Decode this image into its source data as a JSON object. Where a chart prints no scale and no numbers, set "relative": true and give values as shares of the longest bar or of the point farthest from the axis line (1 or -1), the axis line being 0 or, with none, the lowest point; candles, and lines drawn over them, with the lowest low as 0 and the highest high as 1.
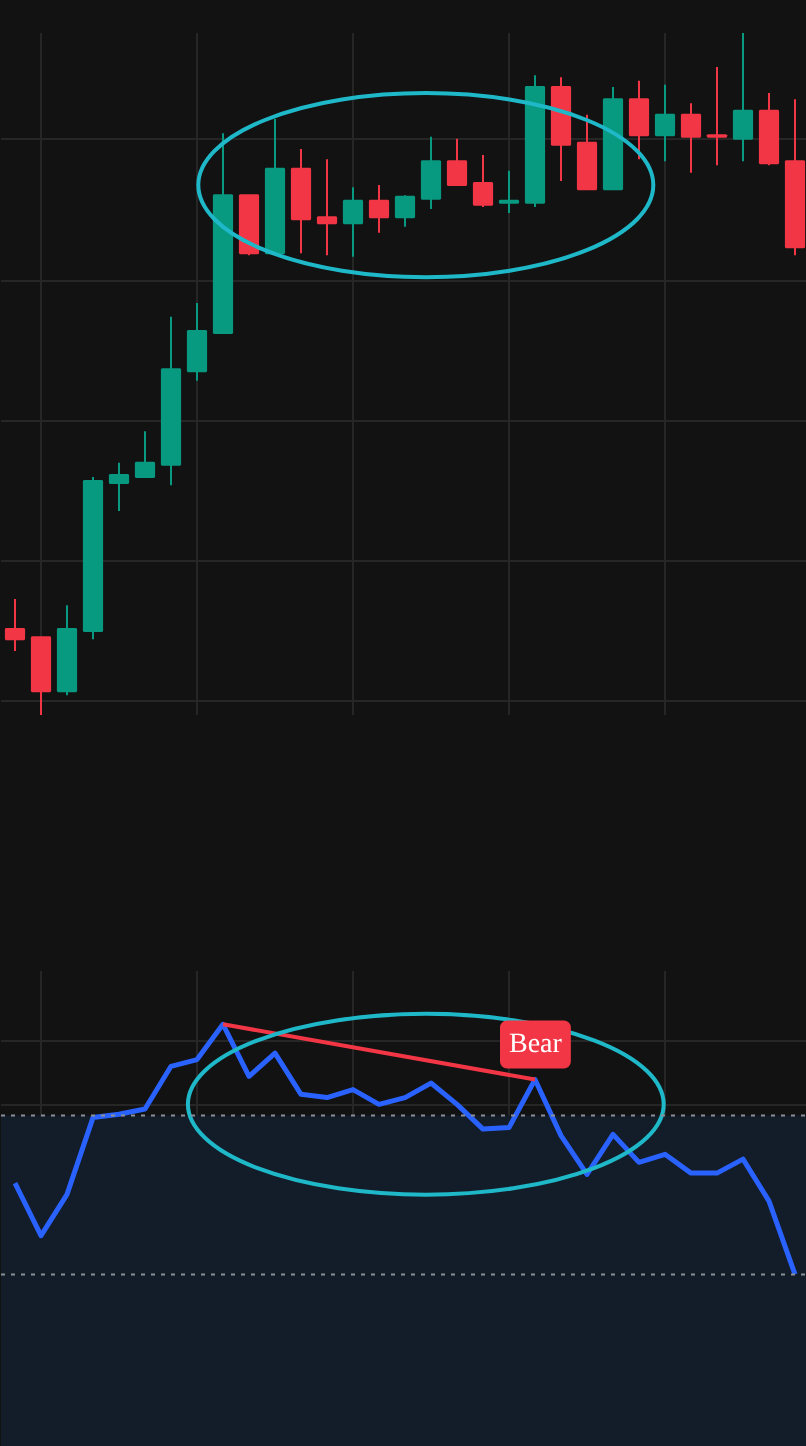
{
  "chart_data": [
    {
      "type": "candlestick",
      "relative": true,
      "grid": true,
      "tick_labels": false,
      "categories": [
        null,
        null,
        null,
        null,
        null,
        null,
        null,
        null,
        null,
        null,
        null,
        null,
        null,
        null,
        null,
        null,
        null,
        null,
        null,
        null,
        null,
        null,
        null,
        null,
        null,
        null,
        null,
        null,
        null,
        null,
        null
      ],
      "colors": [
        "#f23645",
        "#f23645",
        "#089981",
        "#089981",
        "#089981",
        "#089981",
        "#089981",
        "#089981",
        "#089981",
        "#f23645",
        "#089981",
        "#f23645",
        "#f23645",
        "#089981",
        "#f23645",
        "#089981",
        "#089981",
        "#f23645",
        "#f23645",
        "#089981",
        "#089981",
        "#f23645",
        "#f23645",
        "#089981",
        "#f23645",
        "#089981",
        "#f23645",
        "#f23645",
        "#089981",
        "#f23645",
        "#f23645"
      ],
      "ohlc": [
        [
          0.126,
          0.17,
          0.094,
          0.111
        ],
        [
          0.114,
          0.114,
          0,
          0.035
        ],
        [
          0.035,
          0.161,
          0.029,
          0.126
        ],
        [
          0.123,
          0.349,
          0.111,
          0.343
        ],
        [
          0.34,
          0.37,
          0.299,
          0.352
        ],
        [
          0.349,
          0.416,
          0.349,
          0.37
        ],
        [
          0.367,
          0.584,
          0.337,
          0.507
        ],
        [
          0.504,
          0.604,
          0.49,
          0.563
        ],
        [
          0.56,
          0.853,
          0.56,
          0.762
        ],
        [
          0.762,
          0.762,
          0.674,
          0.677
        ],
        [
          0.677,
          0.874,
          0.674,
          0.801
        ],
        [
          0.801,
          0.83,
          0.677,
          0.727
        ],
        [
          0.73,
          0.815,
          0.674,
          0.721
        ],
        [
          0.721,
          0.774,
          0.672,
          0.754
        ],
        [
          0.754,
          0.777,
          0.707,
          0.73
        ],
        [
          0.73,
          0.762,
          0.716,
          0.76
        ],
        [
          0.757,
          0.848,
          0.742,
          0.812
        ],
        [
          0.812,
          0.845,
          0.777,
          0.777
        ],
        [
          0.78,
          0.821,
          0.745,
          0.748
        ],
        [
          0.751,
          0.798,
          0.736,
          0.754
        ],
        [
          0.751,
          0.938,
          0.745,
          0.921
        ],
        [
          0.921,
          0.935,
          0.783,
          0.836
        ],
        [
          0.839,
          0.88,
          0.771,
          0.771
        ],
        [
          0.771,
          0.921,
          0.771,
          0.903
        ],
        [
          0.903,
          0.93,
          0.815,
          0.85
        ],
        [
          0.85,
          0.924,
          0.812,
          0.88
        ],
        [
          0.88,
          0.897,
          0.795,
          0.848
        ],
        [
          0.85,
          0.95,
          0.806,
          0.848
        ],
        [
          0.845,
          1,
          0.812,
          0.886
        ],
        [
          0.886,
          0.912,
          0.806,
          0.809
        ],
        [
          0.812,
          0.903,
          0.674,
          0.686
        ]
      ]
    },
    {
      "type": "line",
      "relative": true,
      "grid": true,
      "tick_labels": false,
      "annotations": [
        "Bear"
      ],
      "categories": [
        null,
        null,
        null,
        null,
        null,
        null,
        null,
        null,
        null,
        null,
        null,
        null,
        null,
        null,
        null,
        null,
        null,
        null,
        null,
        null,
        null,
        null,
        null,
        null,
        null,
        null,
        null,
        null,
        null,
        null,
        null
      ],
      "series": [
        {
          "color": "#2962ff",
          "values": [
            0.365,
            0.155,
            0.32,
            0.627,
            0.64,
            0.661,
            0.832,
            0.859,
            1,
            0.792,
            0.885,
            0.72,
            0.707,
            0.739,
            0.68,
            0.707,
            0.765,
            0.68,
            0.581,
            0.587,
            0.779,
            0.555,
            0.4,
            0.56,
            0.448,
            0.48,
            0.405,
            0.405,
            0.461,
            0.293,
            0
          ]
        },
        {
          "type": "line",
          "color": "#f23645",
          "values": [
            null,
            null,
            null,
            null,
            null,
            null,
            null,
            null,
            1,
            null,
            null,
            null,
            null,
            null,
            null,
            null,
            null,
            null,
            null,
            null,
            0.779,
            null,
            null,
            null,
            null,
            null,
            null,
            null,
            null,
            null,
            null
          ]
        }
      ],
      "ref_lines": [
        {
          "axis": "y",
          "value": 0.635,
          "line_style": "dotted",
          "color": "#8a8f98"
        },
        {
          "axis": "y",
          "value": 0,
          "line_style": "dotted",
          "color": "#8a8f98"
        }
      ],
      "bands": [
        {
          "axis": "y",
          "from": 0,
          "to": 0.635,
          "color": "#131d29"
        }
      ]
    }
  ]
}
